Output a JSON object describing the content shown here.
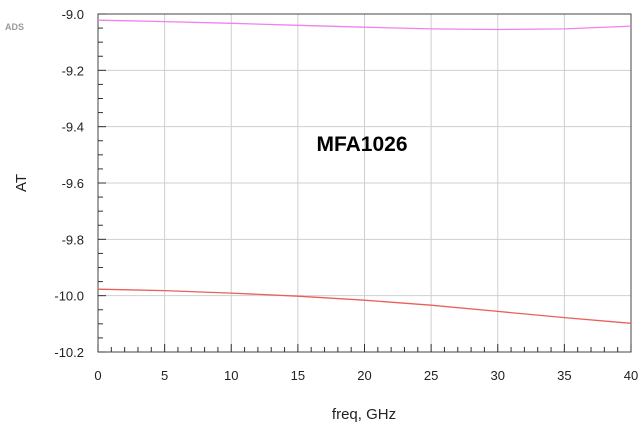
{
  "brand_label": "ADS",
  "chart_data": {
    "type": "line",
    "title": "",
    "annotation": "MFA1026",
    "xlabel": "freq, GHz",
    "ylabel": "AT",
    "xlim": [
      0,
      40
    ],
    "ylim": [
      -10.2,
      -9.0
    ],
    "xticks": [
      0,
      5,
      10,
      15,
      20,
      25,
      30,
      35,
      40
    ],
    "yticks": [
      -9.0,
      -9.2,
      -9.4,
      -9.6,
      -9.8,
      -10.0,
      -10.2
    ],
    "xtick_labels": [
      "0",
      "5",
      "10",
      "15",
      "20",
      "25",
      "30",
      "35",
      "40"
    ],
    "ytick_labels": [
      "-9.0",
      "-9.2",
      "-9.4",
      "-9.6",
      "-9.8",
      "-10.0",
      "-10.2"
    ],
    "grid": true,
    "series": [
      {
        "color": "#ee82ee",
        "x": [
          0,
          5,
          10,
          15,
          20,
          25,
          30,
          35,
          40
        ],
        "y": [
          -9.022,
          -9.027,
          -9.033,
          -9.04,
          -9.047,
          -9.053,
          -9.055,
          -9.053,
          -9.043
        ]
      },
      {
        "color": "#e8605a",
        "x": [
          0,
          5,
          10,
          15,
          20,
          25,
          30,
          35,
          40
        ],
        "y": [
          -9.977,
          -9.982,
          -9.991,
          -10.002,
          -10.016,
          -10.034,
          -10.056,
          -10.078,
          -10.098
        ]
      }
    ]
  }
}
